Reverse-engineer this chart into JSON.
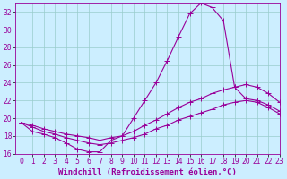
{
  "xlabel": "Windchill (Refroidissement éolien,°C)",
  "background_color": "#cceeff",
  "grid_color": "#99cccc",
  "line_color": "#990099",
  "x_hours": [
    0,
    1,
    2,
    3,
    4,
    5,
    6,
    7,
    8,
    9,
    10,
    11,
    12,
    13,
    14,
    15,
    16,
    17,
    18,
    19,
    20,
    21,
    22,
    23
  ],
  "curve_main": [
    19.5,
    18.5,
    18.2,
    17.8,
    17.2,
    16.5,
    16.2,
    16.2,
    17.5,
    18.0,
    20.0,
    22.0,
    24.0,
    26.5,
    29.2,
    31.8,
    33.0,
    32.5,
    31.0,
    23.5,
    22.2,
    22.0,
    21.5,
    20.8
  ],
  "curve_upper": [
    19.5,
    19.2,
    18.8,
    18.5,
    18.2,
    18.0,
    17.8,
    17.5,
    17.8,
    18.0,
    18.5,
    19.2,
    19.8,
    20.5,
    21.2,
    21.8,
    22.2,
    22.8,
    23.2,
    23.5,
    23.8,
    23.5,
    22.8,
    21.8
  ],
  "curve_lower": [
    19.5,
    19.0,
    18.5,
    18.2,
    17.8,
    17.5,
    17.2,
    17.0,
    17.2,
    17.5,
    17.8,
    18.2,
    18.8,
    19.2,
    19.8,
    20.2,
    20.6,
    21.0,
    21.5,
    21.8,
    22.0,
    21.8,
    21.2,
    20.5
  ],
  "ylim": [
    16,
    33
  ],
  "xlim": [
    -0.5,
    23
  ],
  "yticks": [
    16,
    18,
    20,
    22,
    24,
    26,
    28,
    30,
    32
  ],
  "xticks": [
    0,
    1,
    2,
    3,
    4,
    5,
    6,
    7,
    8,
    9,
    10,
    11,
    12,
    13,
    14,
    15,
    16,
    17,
    18,
    19,
    20,
    21,
    22,
    23
  ],
  "xlabel_fontsize": 6.5,
  "tick_fontsize": 5.5
}
